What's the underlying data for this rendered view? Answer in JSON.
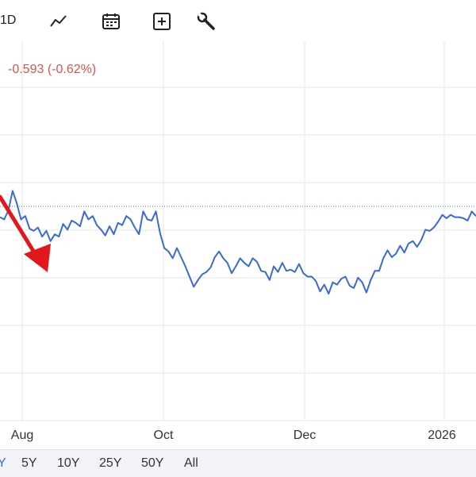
{
  "toolbar": {
    "interval_label": "1D",
    "icons": [
      "line-chart-icon",
      "calendar-icon",
      "add-box-icon",
      "wrench-icon"
    ]
  },
  "quote": {
    "change_text": "-0.593 (-0.62%)",
    "change_color": "#d9534f"
  },
  "colors": {
    "series": "#3b6ad6",
    "grid": "#e6e6e6",
    "reference_line": "#4a77c9",
    "annotation_arrow": "#e3161b"
  },
  "range_selector": {
    "partial_first": "Y",
    "items": [
      "5Y",
      "10Y",
      "25Y",
      "50Y",
      "All"
    ]
  },
  "chart_data": {
    "type": "line",
    "x_tick_labels": [
      "Aug",
      "Oct",
      "Dec",
      "2026"
    ],
    "y_tick_labels": [],
    "grid": true,
    "reference_line": "dotted horizontal",
    "annotation": "red arrow pointing down-right at the line",
    "series": [
      {
        "values": [
          0.35,
          0.33,
          0.41,
          0.58,
          0.47,
          0.33,
          0.36,
          0.25,
          0.23,
          0.26,
          0.18,
          0.23,
          0.14,
          0.2,
          0.18,
          0.29,
          0.24,
          0.32,
          0.3,
          0.27,
          0.4,
          0.33,
          0.36,
          0.28,
          0.24,
          0.19,
          0.27,
          0.2,
          0.3,
          0.28,
          0.36,
          0.33,
          0.26,
          0.2,
          0.4,
          0.33,
          0.32,
          0.4,
          0.21,
          0.08,
          0.05,
          -0.01,
          0.08,
          0.0,
          -0.08,
          -0.17,
          -0.26,
          -0.2,
          -0.15,
          -0.13,
          -0.09,
          0.0,
          0.05,
          -0.01,
          -0.05,
          -0.14,
          -0.08,
          -0.01,
          -0.05,
          -0.08,
          -0.01,
          -0.04,
          -0.12,
          -0.13,
          -0.2,
          -0.08,
          -0.13,
          -0.05,
          -0.12,
          -0.11,
          -0.13,
          -0.06,
          -0.14,
          -0.17,
          -0.17,
          -0.21,
          -0.3,
          -0.24,
          -0.32,
          -0.22,
          -0.24,
          -0.19,
          -0.17,
          -0.25,
          -0.27,
          -0.18,
          -0.22,
          -0.31,
          -0.2,
          -0.12,
          -0.12,
          -0.01,
          0.06,
          0.0,
          0.03,
          0.1,
          0.04,
          0.12,
          0.14,
          0.09,
          0.15,
          0.24,
          0.23,
          0.26,
          0.31,
          0.37,
          0.34,
          0.37,
          0.35,
          0.35,
          0.34,
          0.32,
          0.4,
          0.36
        ]
      }
    ],
    "ylim": [
      -1.0,
      1.5
    ]
  }
}
